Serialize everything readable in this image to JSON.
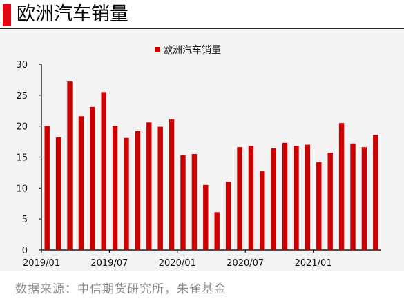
{
  "page": {
    "title": "欧洲汽车销量",
    "source": "数据来源：中信期货研究所，朱雀基金"
  },
  "chart_data": {
    "type": "bar",
    "title": "",
    "legend": {
      "label": "欧洲汽车销量",
      "placement": "top"
    },
    "xlabel": "",
    "ylabel": "",
    "ylim": [
      0,
      30
    ],
    "yticks": [
      "0",
      "5",
      "10",
      "15",
      "20",
      "25",
      "30"
    ],
    "grid": false,
    "x_tick_labels": [
      {
        "index": 0,
        "label": "2019/01"
      },
      {
        "index": 6,
        "label": "2019/07"
      },
      {
        "index": 12,
        "label": "2020/01"
      },
      {
        "index": 18,
        "label": "2020/07"
      },
      {
        "index": 24,
        "label": "2021/01"
      }
    ],
    "categories": [
      "2019/01",
      "2019/02",
      "2019/03",
      "2019/04",
      "2019/05",
      "2019/06",
      "2019/07",
      "2019/08",
      "2019/09",
      "2019/10",
      "2019/11",
      "2019/12",
      "2020/01",
      "2020/02",
      "2020/03",
      "2020/04",
      "2020/05",
      "2020/06",
      "2020/07",
      "2020/08",
      "2020/09",
      "2020/10",
      "2020/11",
      "2020/12",
      "2021/01",
      "2021/02",
      "2021/03",
      "2021/04",
      "2021/05",
      "2021/06"
    ],
    "series": [
      {
        "name": "欧洲汽车销量",
        "color": "#cc0000",
        "values": [
          20.0,
          18.2,
          27.2,
          21.6,
          23.1,
          25.5,
          20.0,
          18.1,
          19.2,
          20.6,
          19.9,
          21.1,
          15.3,
          15.5,
          10.5,
          6.1,
          11.0,
          16.6,
          16.8,
          12.7,
          16.4,
          17.3,
          16.8,
          17.0,
          14.2,
          15.7,
          20.5,
          17.2,
          16.6,
          18.6
        ]
      }
    ],
    "colors": {
      "bar": "#cc0000",
      "accent": "#e30613",
      "axis": "#1a1a1a",
      "background": "#f3f3f3"
    }
  }
}
